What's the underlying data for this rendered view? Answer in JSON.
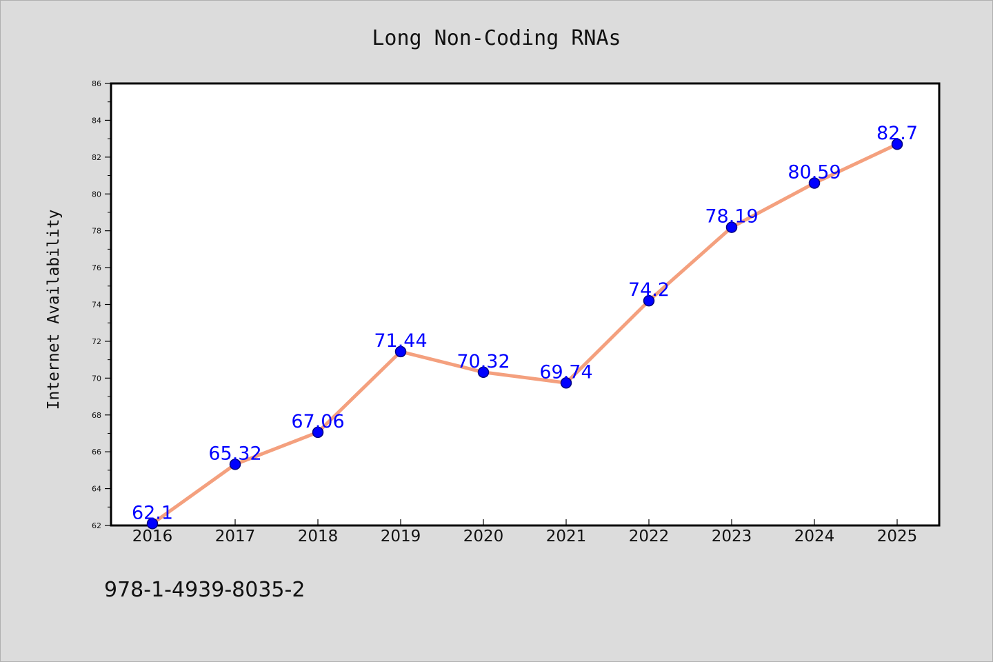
{
  "chart_data": {
    "type": "line",
    "title": "Long Non-Coding RNAs",
    "xlabel": "",
    "ylabel": "Internet Availability",
    "categories": [
      "2016",
      "2017",
      "2018",
      "2019",
      "2020",
      "2021",
      "2022",
      "2023",
      "2024",
      "2025"
    ],
    "series": [
      {
        "values": [
          62.1,
          65.32,
          67.06,
          71.44,
          70.32,
          69.74,
          74.2,
          78.19,
          80.59,
          82.7
        ],
        "labels": [
          "62.1",
          "65.32",
          "67.06",
          "71.44",
          "70.32",
          "69.74",
          "74.2",
          "78.19",
          "80.59",
          "82.7"
        ]
      }
    ],
    "ylim": [
      62,
      86
    ],
    "yticks": [
      "62",
      "64",
      "66",
      "68",
      "70",
      "72",
      "74",
      "76",
      "78",
      "80",
      "82",
      "84",
      "86"
    ],
    "grid": false,
    "legend": "none",
    "colors": {
      "line": "#f4a07e",
      "marker": "#0000ff",
      "marker_edge": "#000080",
      "data_label": "#0000ff",
      "plot_background": "#ffffff",
      "figure_background": "#dcdcdc"
    }
  },
  "footer": {
    "isbn": "978-1-4939-8035-2"
  }
}
